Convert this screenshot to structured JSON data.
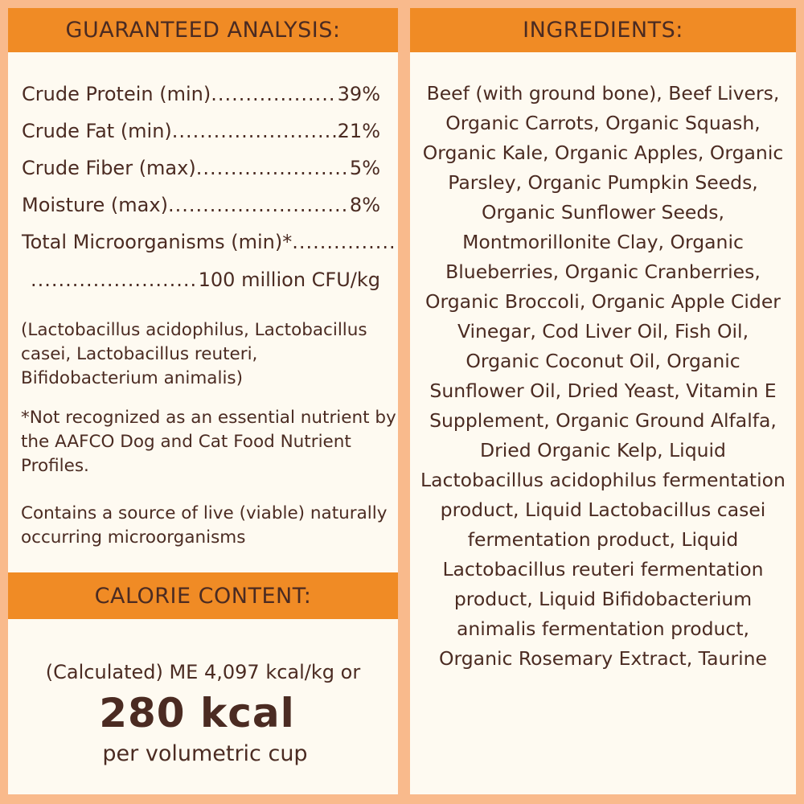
{
  "guaranteed_analysis": {
    "title": "GUARANTEED ANALYSIS:",
    "rows": [
      {
        "label": "Crude Protein (min)",
        "value": "39%"
      },
      {
        "label": "Crude Fat (min)",
        "value": "21%"
      },
      {
        "label": "Crude Fiber (max)",
        "value": "5%"
      },
      {
        "label": "Moisture (max)",
        "value": "8%"
      }
    ],
    "microorganisms_label": "Total Microorganisms (min)*",
    "microorganisms_value": "100 million CFU/kg",
    "strains": "(Lactobacillus acidophilus, Lactobacillus casei, Lactobacillus reuteri, Bifidobacterium animalis)",
    "footnote": "*Not recognized as an essential nutrient by the AAFCO Dog and Cat Food Nutrient Profiles.",
    "live_note": "Contains a source of live (viable) naturally occurring microorganisms"
  },
  "calorie_content": {
    "title": "CALORIE CONTENT:",
    "line1": "(Calculated) ME 4,097 kcal/kg or",
    "big": "280 kcal",
    "line3": "per volumetric cup"
  },
  "ingredients": {
    "title": "INGREDIENTS:",
    "text": "Beef (with ground bone), Beef Livers, Organic Carrots, Organic Squash, Organic Kale, Organic Apples, Organic Parsley, Organic Pumpkin Seeds, Organic Sunflower Seeds, Montmorillonite Clay, Organic Blueberries, Organic Cranberries, Organic Broccoli, Organic Apple Cider Vinegar, Cod Liver Oil, Fish Oil, Organic Coconut Oil, Organic Sunflower Oil, Dried Yeast, Vitamin E Supplement, Organic Ground Alfalfa, Dried Organic Kelp, Liquid Lactobacillus acidophilus fermentation product, Liquid Lactobacillus casei fermentation product, Liquid Lactobacillus reuteri fermentation product, Liquid Bifidobacterium animalis fermentation product, Organic Rosemary Extract, Taurine"
  },
  "colors": {
    "background": "#f9ba8c",
    "header": "#f08b25",
    "panel": "#fefaf1",
    "text": "#4b2b22"
  }
}
